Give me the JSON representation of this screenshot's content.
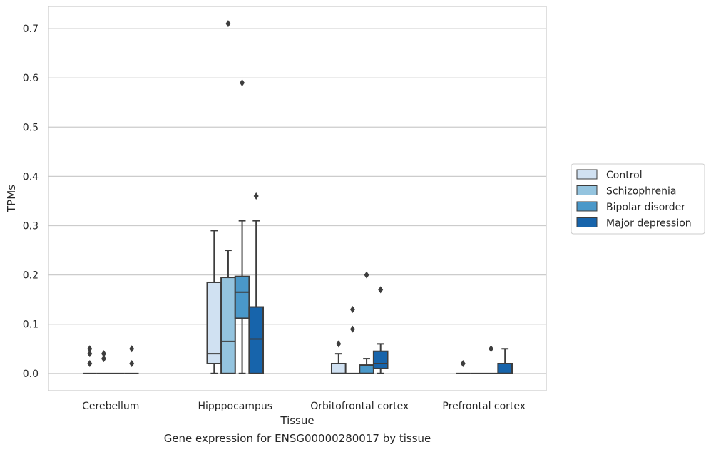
{
  "caption": "Gene expression for ENSG00000280017 by tissue",
  "chart_data": {
    "type": "box",
    "xlabel": "Tissue",
    "ylabel": "TPMs",
    "ylim": [
      -0.035,
      0.745
    ],
    "yticks": [
      0.0,
      0.1,
      0.2,
      0.3,
      0.4,
      0.5,
      0.6,
      0.7
    ],
    "ytick_labels": [
      "0.0",
      "0.1",
      "0.2",
      "0.3",
      "0.4",
      "0.5",
      "0.6",
      "0.7"
    ],
    "categories": [
      "Cerebellum",
      "Hipppocampus",
      "Orbitofrontal cortex",
      "Prefrontal cortex"
    ],
    "grid": "horizontal",
    "legend_position": "right",
    "series": [
      {
        "name": "Control",
        "color": "#d0e1f2",
        "boxes": [
          {
            "whislo": 0.0,
            "q1": 0.0,
            "med": 0.0,
            "q3": 0.0,
            "whishi": 0.0,
            "fliers": [
              0.05,
              0.04,
              0.02
            ]
          },
          {
            "whislo": 0.0,
            "q1": 0.02,
            "med": 0.04,
            "q3": 0.185,
            "whishi": 0.29,
            "fliers": []
          },
          {
            "whislo": 0.0,
            "q1": 0.0,
            "med": 0.0,
            "q3": 0.02,
            "whishi": 0.04,
            "fliers": [
              0.06
            ]
          },
          {
            "whislo": 0.0,
            "q1": 0.0,
            "med": 0.0,
            "q3": 0.0,
            "whishi": 0.0,
            "fliers": [
              0.02
            ]
          }
        ]
      },
      {
        "name": "Schizophrenia",
        "color": "#94c4df",
        "boxes": [
          {
            "whislo": 0.0,
            "q1": 0.0,
            "med": 0.0,
            "q3": 0.0,
            "whishi": 0.0,
            "fliers": [
              0.04,
              0.03
            ]
          },
          {
            "whislo": 0.0,
            "q1": 0.0,
            "med": 0.065,
            "q3": 0.195,
            "whishi": 0.25,
            "fliers": [
              0.71
            ]
          },
          {
            "whislo": 0.0,
            "q1": 0.0,
            "med": 0.0,
            "q3": 0.0,
            "whishi": 0.0,
            "fliers": [
              0.13,
              0.09
            ]
          },
          {
            "whislo": 0.0,
            "q1": 0.0,
            "med": 0.0,
            "q3": 0.0,
            "whishi": 0.0,
            "fliers": []
          }
        ]
      },
      {
        "name": "Bipolar disorder",
        "color": "#4a98c9",
        "boxes": [
          {
            "whislo": 0.0,
            "q1": 0.0,
            "med": 0.0,
            "q3": 0.0,
            "whishi": 0.0,
            "fliers": []
          },
          {
            "whislo": 0.0,
            "q1": 0.112,
            "med": 0.165,
            "q3": 0.197,
            "whishi": 0.31,
            "fliers": [
              0.59
            ]
          },
          {
            "whislo": 0.0,
            "q1": 0.0,
            "med": 0.0,
            "q3": 0.017,
            "whishi": 0.03,
            "fliers": [
              0.2
            ]
          },
          {
            "whislo": 0.0,
            "q1": 0.0,
            "med": 0.0,
            "q3": 0.0,
            "whishi": 0.0,
            "fliers": [
              0.05
            ]
          }
        ]
      },
      {
        "name": "Major depression",
        "color": "#1764ab",
        "boxes": [
          {
            "whislo": 0.0,
            "q1": 0.0,
            "med": 0.0,
            "q3": 0.0,
            "whishi": 0.0,
            "fliers": [
              0.05,
              0.02
            ]
          },
          {
            "whislo": 0.0,
            "q1": 0.0,
            "med": 0.07,
            "q3": 0.135,
            "whishi": 0.31,
            "fliers": [
              0.36
            ]
          },
          {
            "whislo": 0.0,
            "q1": 0.01,
            "med": 0.02,
            "q3": 0.045,
            "whishi": 0.06,
            "fliers": [
              0.17
            ]
          },
          {
            "whislo": 0.0,
            "q1": 0.0,
            "med": 0.0,
            "q3": 0.02,
            "whishi": 0.05,
            "fliers": []
          }
        ]
      }
    ]
  }
}
